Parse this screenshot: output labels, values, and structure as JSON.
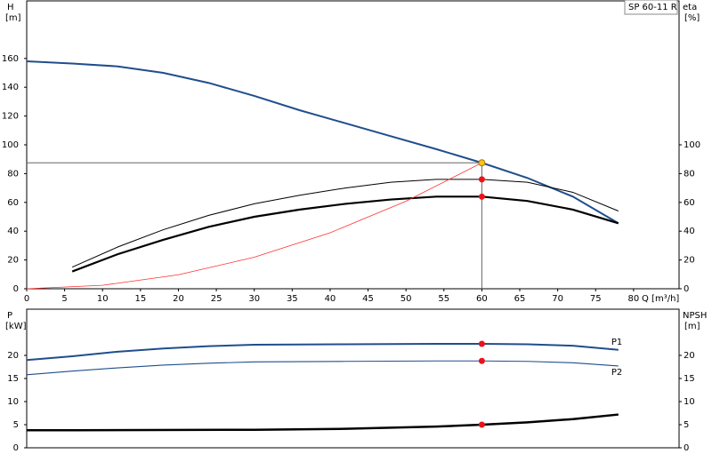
{
  "chart_data": [
    {
      "type": "line",
      "title": "SP 60-11 R",
      "ylabel": "H",
      "yunit": "[m]",
      "y2label": "eta",
      "y2unit": "[%]",
      "xlabel": "Q [m³/h]",
      "xlim": [
        0,
        86
      ],
      "xticks": [
        0,
        5,
        10,
        15,
        20,
        25,
        30,
        35,
        40,
        45,
        50,
        55,
        60,
        65,
        70,
        75,
        80
      ],
      "ylim": [
        0,
        200
      ],
      "yticks": [
        0,
        20,
        40,
        60,
        80,
        100,
        120,
        140,
        160
      ],
      "y2lim": [
        0,
        200
      ],
      "y2ticks": [
        0,
        20,
        40,
        60,
        80,
        100
      ],
      "series": [
        {
          "color": "#1f4e8c",
          "x": [
            0,
            6,
            12,
            18,
            24,
            30,
            36,
            42,
            48,
            54,
            60,
            66,
            72,
            78
          ],
          "values": [
            158,
            156.5,
            154.5,
            150,
            143,
            134,
            124,
            115,
            106,
            97,
            87.5,
            77,
            64,
            45.5
          ]
        },
        {
          "color": "#000000",
          "axis": "y2",
          "x": [
            6,
            12,
            18,
            24,
            30,
            36,
            42,
            48,
            54,
            60,
            66,
            72,
            78
          ],
          "values": [
            15,
            29,
            41,
            51,
            59,
            65,
            70,
            74,
            76,
            76,
            74,
            67,
            54
          ]
        },
        {
          "color": "#000000",
          "axis": "y2",
          "x": [
            6,
            12,
            18,
            24,
            30,
            36,
            42,
            48,
            54,
            60,
            66,
            72,
            78
          ],
          "values": [
            12,
            24,
            34,
            43,
            50,
            55,
            59,
            62,
            64,
            64,
            61,
            55,
            45.5
          ]
        },
        {
          "color": "#ff3030",
          "x": [
            0,
            10,
            20,
            30,
            40,
            50,
            60
          ],
          "values": [
            0,
            2.4,
            9.7,
            21.9,
            38.9,
            60.8,
            87.5
          ]
        }
      ],
      "duty_points": [
        {
          "x": 60,
          "y": 87.5,
          "color": "#f7c21a"
        },
        {
          "x": 60,
          "y": 76,
          "axis": "y2",
          "color": "#e8141a"
        },
        {
          "x": 60,
          "y": 64,
          "axis": "y2",
          "color": "#e8141a"
        }
      ]
    },
    {
      "type": "line",
      "ylabel": "P",
      "yunit": "[kW]",
      "y2label": "NPSH",
      "y2unit": "[m]",
      "xlim": [
        0,
        86
      ],
      "ylim": [
        0,
        30
      ],
      "yticks": [
        0,
        5,
        10,
        15,
        20
      ],
      "y2lim": [
        0,
        30
      ],
      "y2ticks": [
        0,
        5,
        10,
        15,
        20
      ],
      "series": [
        {
          "name": "P1",
          "color": "#1f4e8c",
          "x": [
            0,
            6,
            12,
            18,
            24,
            30,
            42,
            54,
            60,
            66,
            72,
            78
          ],
          "values": [
            19,
            19.8,
            20.8,
            21.5,
            22,
            22.3,
            22.4,
            22.5,
            22.5,
            22.4,
            22.1,
            21.2
          ]
        },
        {
          "name": "P2",
          "color": "#1f4e8c",
          "x": [
            0,
            6,
            12,
            18,
            24,
            30,
            42,
            54,
            60,
            66,
            72,
            78
          ],
          "values": [
            15.8,
            16.6,
            17.3,
            17.9,
            18.3,
            18.6,
            18.7,
            18.8,
            18.8,
            18.7,
            18.4,
            17.7
          ]
        },
        {
          "color": "#000000",
          "axis": "y2",
          "x": [
            0,
            6,
            30,
            42,
            54,
            60,
            66,
            72,
            78
          ],
          "values": [
            3.8,
            3.8,
            3.9,
            4.1,
            4.6,
            5,
            5.5,
            6.2,
            7.2
          ]
        }
      ],
      "duty_points": [
        {
          "x": 60,
          "y": 22.5,
          "color": "#e8141a"
        },
        {
          "x": 60,
          "y": 18.8,
          "color": "#e8141a"
        },
        {
          "x": 60,
          "y": 5,
          "axis": "y2",
          "color": "#e8141a"
        }
      ]
    }
  ]
}
